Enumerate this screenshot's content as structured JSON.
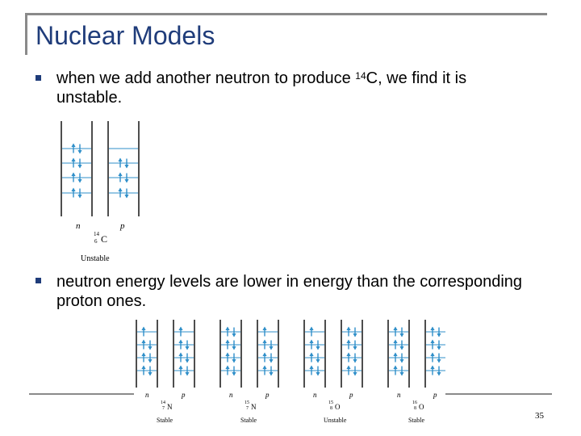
{
  "slide": {
    "title": "Nuclear Models",
    "page_number": "35",
    "accent_color": "#1f3c7a",
    "bullets": [
      {
        "text_before": "when we add another neutron to produce ",
        "superscript": "14",
        "text_after": "C, we find it is",
        "text_line2": "unstable."
      },
      {
        "text_line1": "neutron energy levels are lower in energy than the corresponding",
        "text_line2": "proton ones."
      }
    ]
  },
  "figure1": {
    "col_n": "n",
    "col_p": "p",
    "mass": "14",
    "charge": "6",
    "symbol": "C",
    "status": "Unstable",
    "n_levels": [
      "pair",
      "pair",
      "pair",
      "pair"
    ],
    "p_levels": [
      "empty",
      "pair",
      "pair",
      "pair"
    ]
  },
  "figure2": {
    "panels": [
      {
        "col_n": "n",
        "col_p": "p",
        "mass": "14",
        "charge": "7",
        "symbol": "N",
        "status": "Stable",
        "n_levels": [
          "up",
          "pair",
          "pair",
          "pair"
        ],
        "p_levels": [
          "up",
          "pair",
          "pair",
          "pair"
        ]
      },
      {
        "col_n": "n",
        "col_p": "p",
        "mass": "15",
        "charge": "7",
        "symbol": "N",
        "status": "Stable",
        "n_levels": [
          "pair",
          "pair",
          "pair",
          "pair"
        ],
        "p_levels": [
          "up",
          "pair",
          "pair",
          "pair"
        ]
      },
      {
        "col_n": "n",
        "col_p": "p",
        "mass": "15",
        "charge": "8",
        "symbol": "O",
        "status": "Unstable",
        "n_levels": [
          "up",
          "pair",
          "pair",
          "pair"
        ],
        "p_levels": [
          "pair",
          "pair",
          "pair",
          "pair"
        ]
      },
      {
        "col_n": "n",
        "col_p": "p",
        "mass": "16",
        "charge": "8",
        "symbol": "O",
        "status": "Stable",
        "n_levels": [
          "pair",
          "pair",
          "pair",
          "pair"
        ],
        "p_levels": [
          "pair",
          "pair",
          "pair",
          "pair"
        ]
      }
    ]
  }
}
